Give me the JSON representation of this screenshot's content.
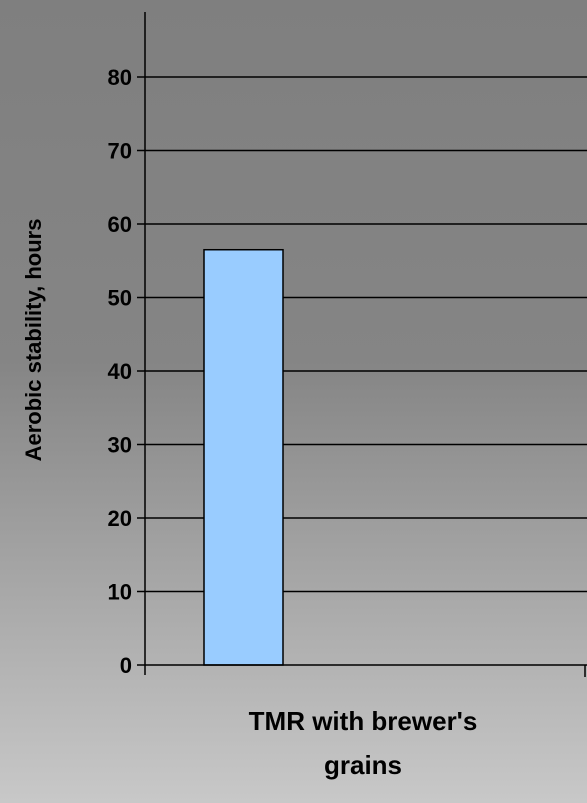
{
  "chart_data": {
    "type": "bar",
    "categories": [
      "TMR with brewer's grains"
    ],
    "category_label_lines": [
      [
        "TMR with brewer's",
        "grains"
      ]
    ],
    "values": [
      56.5
    ],
    "xlabel": "",
    "ylabel": "Aerobic stability, hours",
    "ylim": [
      0,
      80
    ],
    "yticks": [
      0,
      10,
      20,
      30,
      40,
      50,
      60,
      70,
      80
    ],
    "grid": true,
    "legend": "none",
    "colors": {
      "bar_fill": "#99ccff",
      "bar_stroke": "#000000",
      "gridline": "#000000",
      "background_top": "#7f7f7f",
      "background_bottom": "#c8c8c8"
    }
  }
}
